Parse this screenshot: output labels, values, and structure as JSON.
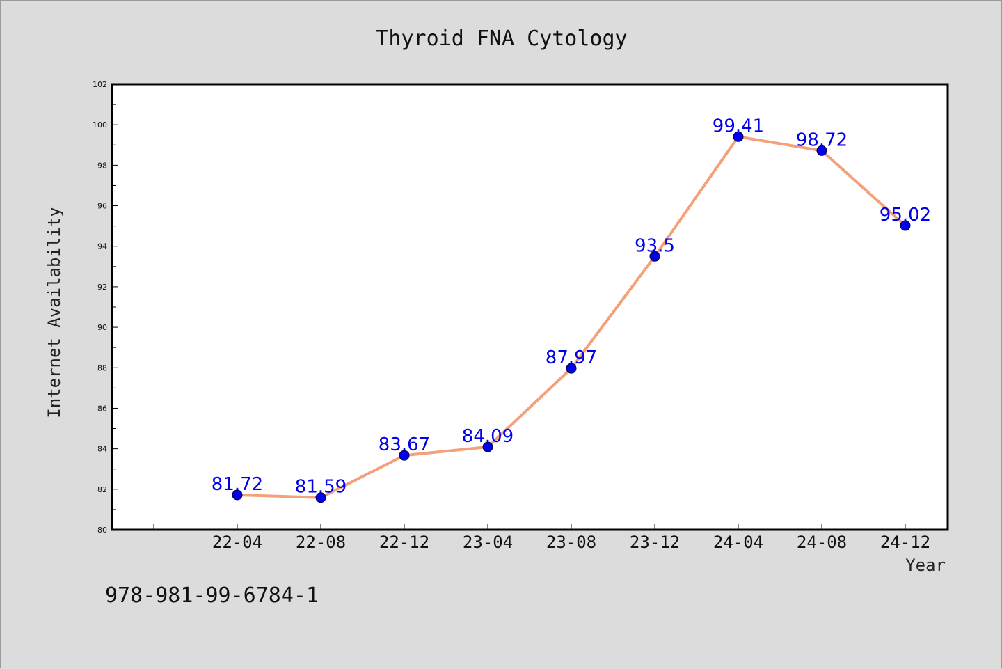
{
  "chart_data": {
    "type": "line",
    "title": "Thyroid FNA Cytology",
    "xlabel": "Year",
    "ylabel": "Internet Availability",
    "categories": [
      "22-04",
      "22-08",
      "22-12",
      "23-04",
      "23-08",
      "23-12",
      "24-04",
      "24-08",
      "24-12"
    ],
    "series": [
      {
        "values": [
          81.72,
          81.59,
          83.67,
          84.09,
          87.97,
          93.5,
          99.41,
          98.72,
          95.02
        ],
        "labels": [
          "81.72",
          "81.59",
          "83.67",
          "84.09",
          "87.97",
          "93.5",
          "99.41",
          "98.72",
          "95.02"
        ]
      }
    ],
    "ylim": [
      80,
      102
    ],
    "yticks": [
      "80",
      "82",
      "84",
      "86",
      "88",
      "90",
      "92",
      "94",
      "96",
      "98",
      "100",
      "102"
    ],
    "grid": false,
    "legend": "none",
    "line_color": "#f4a07a",
    "marker_color": "#0000ee",
    "label_color": "#0000ee"
  },
  "footer": {
    "text": "978-981-99-6784-1"
  }
}
